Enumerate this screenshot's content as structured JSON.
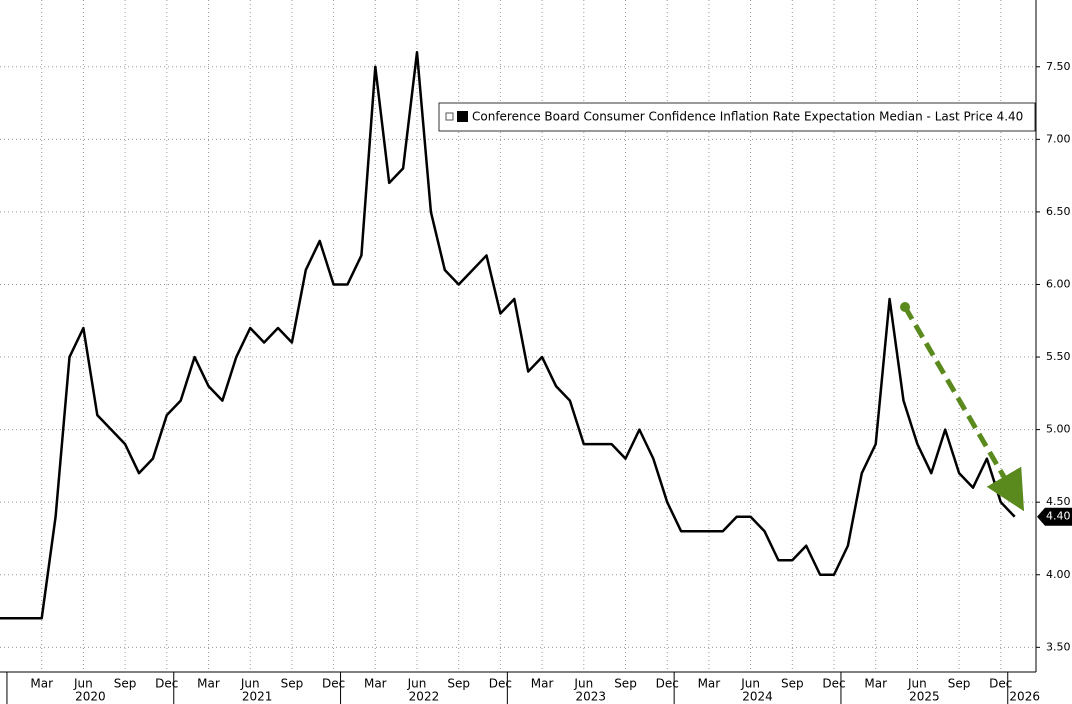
{
  "chart_data": {
    "type": "line",
    "categories": [
      null,
      null,
      null,
      "Mar",
      null,
      null,
      "Jun",
      null,
      null,
      "Sep",
      null,
      null,
      "Dec",
      null,
      null,
      "Mar",
      null,
      null,
      "Jun",
      null,
      null,
      "Sep",
      null,
      null,
      "Dec",
      null,
      null,
      "Mar",
      null,
      null,
      "Jun",
      null,
      null,
      "Sep",
      null,
      null,
      "Dec",
      null,
      null,
      "Mar",
      null,
      null,
      "Jun",
      null,
      null,
      "Sep",
      null,
      null,
      "Dec",
      null,
      null,
      "Mar",
      null,
      null,
      "Jun",
      null,
      null,
      "Sep",
      null,
      null,
      "Dec",
      null,
      null,
      "Mar",
      null,
      null,
      "Jun",
      null,
      null,
      "Sep",
      null,
      null,
      "Dec",
      null
    ],
    "years": [
      "2020",
      "2021",
      "2022",
      "2023",
      "2024",
      "2025",
      "2026"
    ],
    "series": [
      {
        "name": "Conference Board Consumer Confidence Inflation Rate Expectation Median - Last Price 4.40",
        "color": "#000000",
        "values": [
          3.7,
          3.7,
          3.7,
          3.7,
          4.4,
          5.5,
          5.7,
          5.1,
          5.0,
          4.9,
          4.7,
          4.8,
          5.1,
          5.2,
          5.5,
          5.3,
          5.2,
          5.5,
          5.7,
          5.6,
          5.7,
          5.6,
          6.1,
          6.3,
          6.0,
          6.0,
          6.2,
          7.5,
          6.7,
          6.8,
          7.6,
          6.5,
          6.1,
          6.0,
          6.1,
          6.2,
          5.8,
          5.9,
          5.4,
          5.5,
          5.3,
          5.2,
          4.9,
          4.9,
          4.9,
          4.8,
          5.0,
          4.8,
          4.5,
          4.3,
          4.3,
          4.3,
          4.3,
          4.4,
          4.4,
          4.3,
          4.1,
          4.1,
          4.2,
          4.0,
          4.0,
          4.2,
          4.7,
          4.9,
          5.9,
          5.2,
          4.9,
          4.7,
          5.0,
          4.7,
          4.6,
          4.8,
          4.5,
          4.4
        ]
      }
    ],
    "last_value_label": "4.40",
    "ylim": [
      3.33,
      7.96
    ],
    "yticks": [
      {
        "value": 3.5,
        "label": "3.50"
      },
      {
        "value": 4.0,
        "label": "4.00"
      },
      {
        "value": 4.5,
        "label": "4.50"
      },
      {
        "value": 5.0,
        "label": "5.00"
      },
      {
        "value": 5.5,
        "label": "5.50"
      },
      {
        "value": 6.0,
        "label": "6.00"
      },
      {
        "value": 6.5,
        "label": "6.50"
      },
      {
        "value": 7.0,
        "label": "7.00"
      },
      {
        "value": 7.5,
        "label": "7.50"
      }
    ],
    "grid": true
  }
}
